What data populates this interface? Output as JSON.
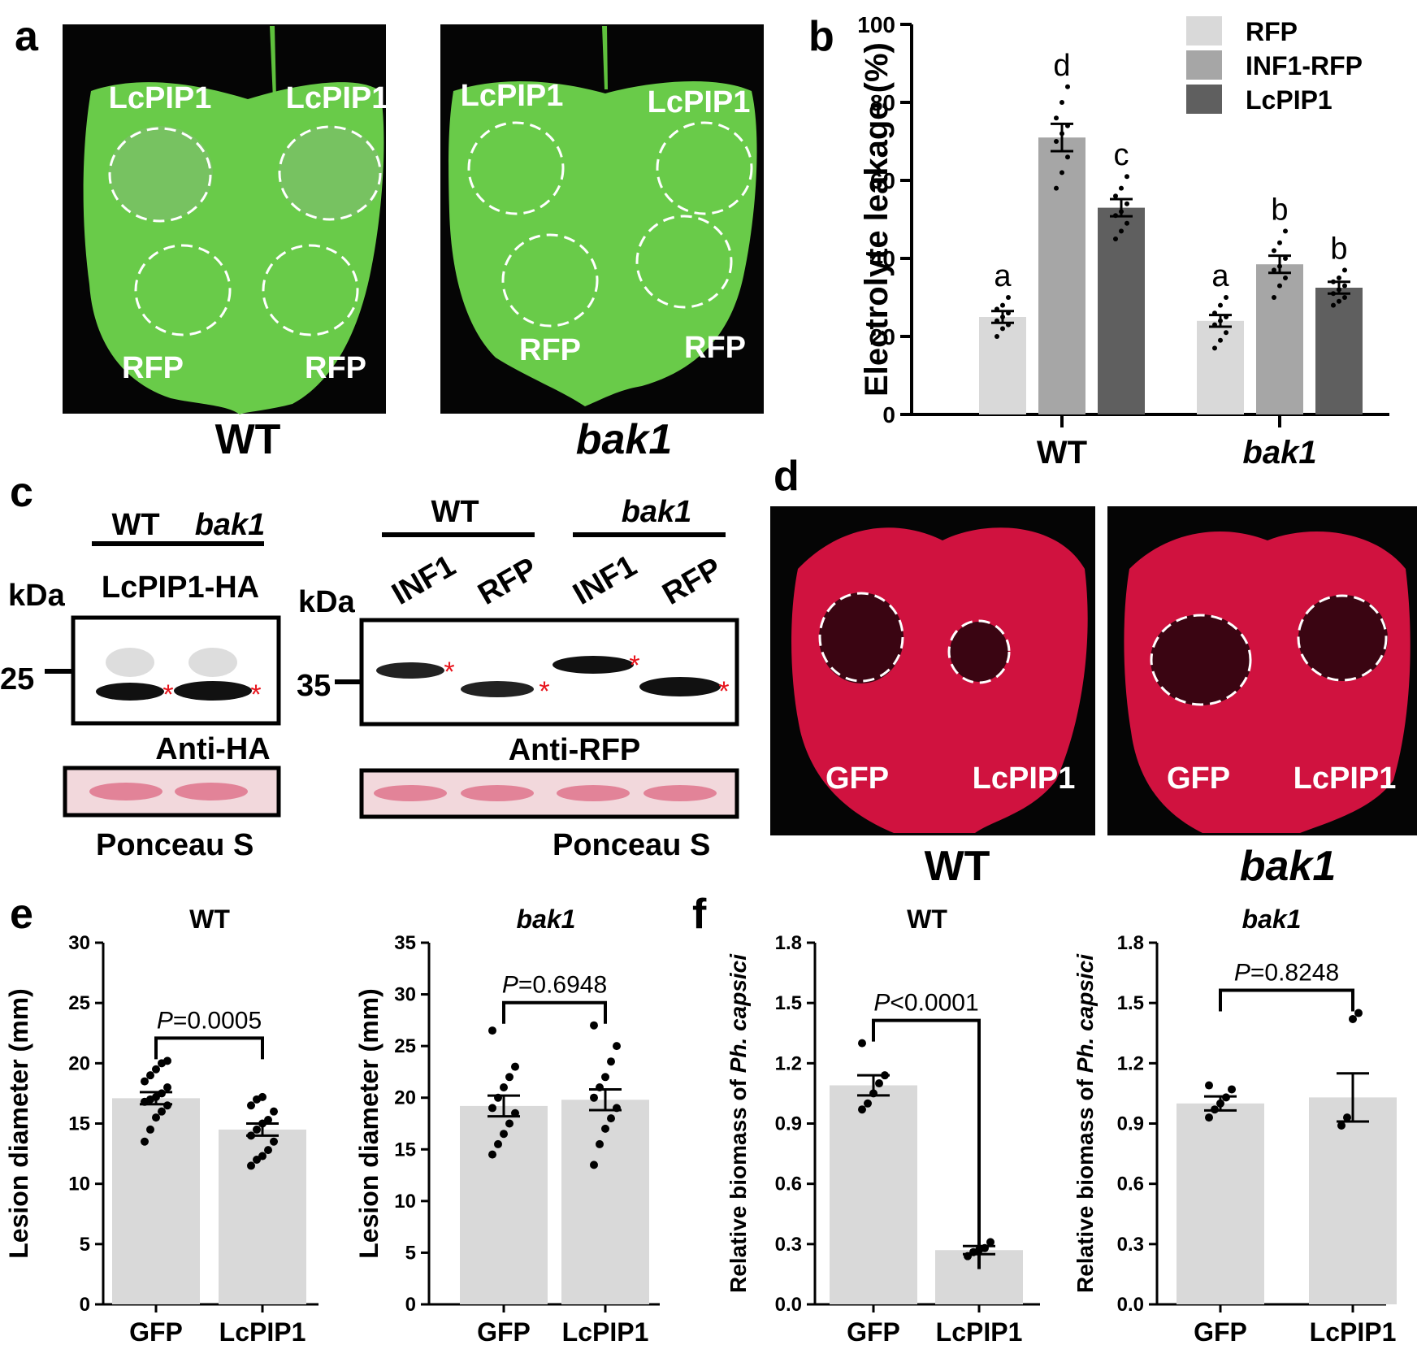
{
  "panels": {
    "a": {
      "letter": "a",
      "leaf_labels": {
        "lcpip1": "LcPIP1",
        "rfp": "RFP"
      },
      "captions": {
        "wt": "WT",
        "bak1": "bak1"
      }
    },
    "b": {
      "letter": "b"
    },
    "c": {
      "letter": "c",
      "kda": "kDa",
      "asterisk": "*",
      "ponceau": "Ponceau S",
      "left": {
        "header_wt": "WT",
        "header_bak1": "bak1",
        "construct": "LcPIP1-HA",
        "marker": "25",
        "antibody": "Anti-HA"
      },
      "right": {
        "header_wt": "WT",
        "header_bak1": "bak1",
        "lanes": [
          "INF1",
          "RFP",
          "INF1",
          "RFP"
        ],
        "marker": "35",
        "antibody": "Anti-RFP"
      }
    },
    "d": {
      "letter": "d",
      "leaf_labels": {
        "gfp": "GFP",
        "lcpip1": "LcPIP1"
      },
      "captions": {
        "wt": "WT",
        "bak1": "bak1"
      }
    },
    "e": {
      "letter": "e"
    },
    "f": {
      "letter": "f"
    }
  },
  "colors": {
    "light_bar": "#d9d9d9",
    "mid_bar": "#a6a6a6",
    "dark_bar": "#5f5f5f",
    "asterisk": "#e8141c"
  },
  "chart_data": [
    {
      "id": "b",
      "type": "bar",
      "ylabel": "Electrolyte leakage (%)",
      "ylim": [
        0,
        100
      ],
      "yticks": [
        0,
        20,
        40,
        60,
        80,
        100
      ],
      "groups": [
        "WT",
        "bak1"
      ],
      "series": [
        {
          "name": "RFP",
          "color": "#d9d9d9",
          "values": [
            25,
            24
          ],
          "errors": [
            1.5,
            1.5
          ],
          "letters": [
            "a",
            "a"
          ],
          "points": [
            [
              20,
              22,
              23,
              24,
              25,
              26,
              27,
              28,
              30
            ],
            [
              17,
              19,
              21,
              23,
              24,
              25,
              26,
              28,
              30
            ]
          ]
        },
        {
          "name": "INF1-RFP",
          "color": "#a6a6a6",
          "values": [
            71,
            38.5
          ],
          "errors": [
            3.5,
            2.2
          ],
          "letters": [
            "d",
            "b"
          ],
          "points": [
            [
              58,
              62,
              66,
              70,
              72,
              74,
              76,
              80,
              84
            ],
            [
              30,
              33,
              35,
              37,
              38,
              40,
              42,
              44,
              47
            ]
          ]
        },
        {
          "name": "LcPIP1",
          "color": "#5f5f5f",
          "values": [
            53,
            32.5
          ],
          "errors": [
            2.2,
            1.5
          ],
          "letters": [
            "c",
            "b"
          ],
          "points": [
            [
              45,
              47,
              49,
              51,
              52,
              54,
              56,
              58,
              61
            ],
            [
              28,
              29,
              30,
              31,
              32,
              33,
              34,
              35,
              37
            ]
          ]
        }
      ],
      "legend": "top-right"
    },
    {
      "id": "e1",
      "type": "bar",
      "title": "WT",
      "ylabel": "Lesion diameter (mm)",
      "ylim": [
        0,
        30
      ],
      "yticks": [
        0,
        5,
        10,
        15,
        20,
        25,
        30
      ],
      "categories": [
        "GFP",
        "LcPIP1"
      ],
      "values": [
        17.1,
        14.5
      ],
      "errors": [
        0.5,
        0.5
      ],
      "points": [
        [
          13.5,
          14.5,
          15.5,
          16,
          16.5,
          16.8,
          17,
          17.2,
          17.5,
          18,
          18.5,
          19,
          19.5,
          20,
          20.2
        ],
        [
          11.5,
          12,
          12.3,
          12.8,
          13.5,
          14,
          14.5,
          15,
          15.3,
          16,
          16.5,
          17,
          17.2
        ]
      ],
      "bar_color": "#d9d9d9",
      "pvalue_label": "P",
      "pvalue_text": "=0.0005"
    },
    {
      "id": "e2",
      "type": "bar",
      "title": "bak1",
      "ylabel": "Lesion diameter (mm)",
      "ylim": [
        0,
        35
      ],
      "yticks": [
        0,
        5,
        10,
        15,
        20,
        25,
        30,
        35
      ],
      "categories": [
        "GFP",
        "LcPIP1"
      ],
      "values": [
        19.2,
        19.8
      ],
      "errors": [
        1.0,
        1.0
      ],
      "points": [
        [
          14.5,
          15.5,
          16.5,
          17.5,
          18.5,
          19,
          20,
          21,
          22,
          23,
          26.5
        ],
        [
          13.5,
          15.5,
          17,
          18,
          19,
          20,
          21,
          22,
          23.5,
          25,
          27
        ]
      ],
      "bar_color": "#d9d9d9",
      "pvalue_label": "P",
      "pvalue_text": "=0.6948"
    },
    {
      "id": "f1",
      "type": "bar",
      "title": "WT",
      "ylabel": "Relative biomass of ",
      "ylabel_italic": "Ph. capsici",
      "ylim": [
        0,
        1.8
      ],
      "yticks": [
        "0.0",
        "0.3",
        "0.6",
        "0.9",
        "1.2",
        "1.5",
        "1.8"
      ],
      "categories": [
        "GFP",
        "LcPIP1"
      ],
      "values": [
        1.09,
        0.27
      ],
      "errors": [
        0.05,
        0.02
      ],
      "points": [
        [
          0.97,
          1.0,
          1.05,
          1.1,
          1.14,
          1.3
        ],
        [
          0.24,
          0.26,
          0.27,
          0.28,
          0.31
        ]
      ],
      "bar_color": "#d9d9d9",
      "pvalue_label": "P",
      "pvalue_text": "<0.0001"
    },
    {
      "id": "f2",
      "type": "bar",
      "title": "bak1",
      "ylabel": "Relative biomass of ",
      "ylabel_italic": "Ph. capsici",
      "ylim": [
        0,
        1.8
      ],
      "yticks": [
        "0.0",
        "0.3",
        "0.6",
        "0.9",
        "1.2",
        "1.5",
        "1.8"
      ],
      "categories": [
        "GFP",
        "LcPIP1"
      ],
      "values": [
        1.0,
        1.03
      ],
      "errors": [
        0.035,
        0.12
      ],
      "points": [
        [
          0.93,
          0.97,
          1.0,
          1.03,
          1.07,
          1.09
        ],
        [
          0.89,
          0.93,
          1.42,
          1.45
        ]
      ],
      "bar_color": "#d9d9d9",
      "pvalue_label": "P",
      "pvalue_text": "=0.8248"
    }
  ]
}
